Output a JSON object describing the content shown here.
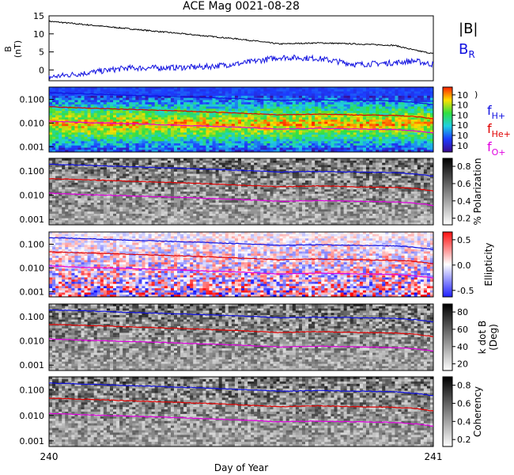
{
  "title": "ACE Mag 0021-08-28",
  "xlabel": "Day of Year",
  "x_ticks": [
    "240",
    "241"
  ],
  "colors": {
    "black": "#000000",
    "blue": "#1010e0",
    "red": "#e00000",
    "magenta": "#e000e0"
  },
  "chart_data": [
    {
      "type": "line",
      "panel": "magnetic-field",
      "xlim": [
        240,
        241
      ],
      "ylim": [
        -3,
        15
      ],
      "ylabel": "B",
      "yunit": "(nT)",
      "y_ticks": [
        "15",
        "10",
        "5",
        "0"
      ],
      "y_tick_values": [
        15,
        10,
        5,
        0
      ],
      "x": [
        240.0,
        240.1,
        240.2,
        240.3,
        240.4,
        240.5,
        240.6,
        240.7,
        240.8,
        240.9,
        240.95,
        241.0
      ],
      "series": [
        {
          "name": "|B|",
          "color": "#000000",
          "values": [
            13.5,
            12.5,
            11.5,
            10.5,
            9.5,
            8.5,
            7.2,
            7.5,
            7.2,
            6.8,
            5.5,
            4.5
          ]
        },
        {
          "name": "B",
          "subscript": "R",
          "color": "#1010e0",
          "values": [
            -2.0,
            -0.8,
            0.5,
            0.6,
            0.8,
            1.8,
            3.5,
            3.2,
            1.5,
            2.0,
            2.5,
            1.5
          ]
        }
      ]
    },
    {
      "type": "heatmap",
      "panel": "power-spectrum",
      "cmap": "rainbow",
      "y_ticks": [
        "0.100",
        "0.010",
        "0.001"
      ],
      "colorbar_ticks": [
        "10",
        "10",
        "10",
        "10",
        "10",
        "10"
      ],
      "legend": [
        {
          "label": "f",
          "subscript": "H+",
          "color": "#1010e0"
        },
        {
          "label": "f",
          "subscript": "He+",
          "color": "#e00000"
        },
        {
          "label": "f",
          "subscript": "O+",
          "color": "#e000e0"
        }
      ]
    },
    {
      "type": "heatmap",
      "panel": "polarization",
      "cmap": "gray",
      "y_ticks": [
        "0.100",
        "0.010",
        "0.001"
      ],
      "colorbar_label": "% Polarization",
      "colorbar_ticks": [
        "0.8",
        "0.6",
        "0.4",
        "0.2"
      ]
    },
    {
      "type": "heatmap",
      "panel": "ellipticity",
      "cmap": "bwr",
      "y_ticks": [
        "0.100",
        "0.010",
        "0.001"
      ],
      "colorbar_label": "Ellipticity",
      "colorbar_ticks": [
        "0.5",
        "0.0",
        "-0.5"
      ]
    },
    {
      "type": "heatmap",
      "panel": "k-dot-b",
      "cmap": "gray",
      "y_ticks": [
        "0.100",
        "0.010",
        "0.001"
      ],
      "colorbar_label": "k dot B",
      "colorbar_unit": "(Deg)",
      "colorbar_ticks": [
        "80",
        "60",
        "40",
        "20"
      ]
    },
    {
      "type": "heatmap",
      "panel": "coherency",
      "cmap": "gray",
      "y_ticks": [
        "0.100",
        "0.010",
        "0.001"
      ],
      "colorbar_label": "Coherency",
      "colorbar_ticks": [
        "0.8",
        "0.6",
        "0.4",
        "0.2"
      ]
    }
  ],
  "gyro_lines": {
    "x": [
      240.0,
      240.1,
      240.2,
      240.3,
      240.4,
      240.5,
      240.6,
      240.7,
      240.8,
      240.9,
      240.95,
      241.0
    ],
    "H+": [
      0.19,
      0.17,
      0.15,
      0.135,
      0.12,
      0.105,
      0.09,
      0.095,
      0.09,
      0.085,
      0.075,
      0.06
    ],
    "He+": [
      0.048,
      0.043,
      0.038,
      0.034,
      0.03,
      0.026,
      0.022,
      0.024,
      0.022,
      0.021,
      0.019,
      0.015
    ],
    "O+": [
      0.012,
      0.0105,
      0.0095,
      0.0085,
      0.0075,
      0.0066,
      0.0056,
      0.006,
      0.0056,
      0.0053,
      0.0047,
      0.0038
    ]
  }
}
